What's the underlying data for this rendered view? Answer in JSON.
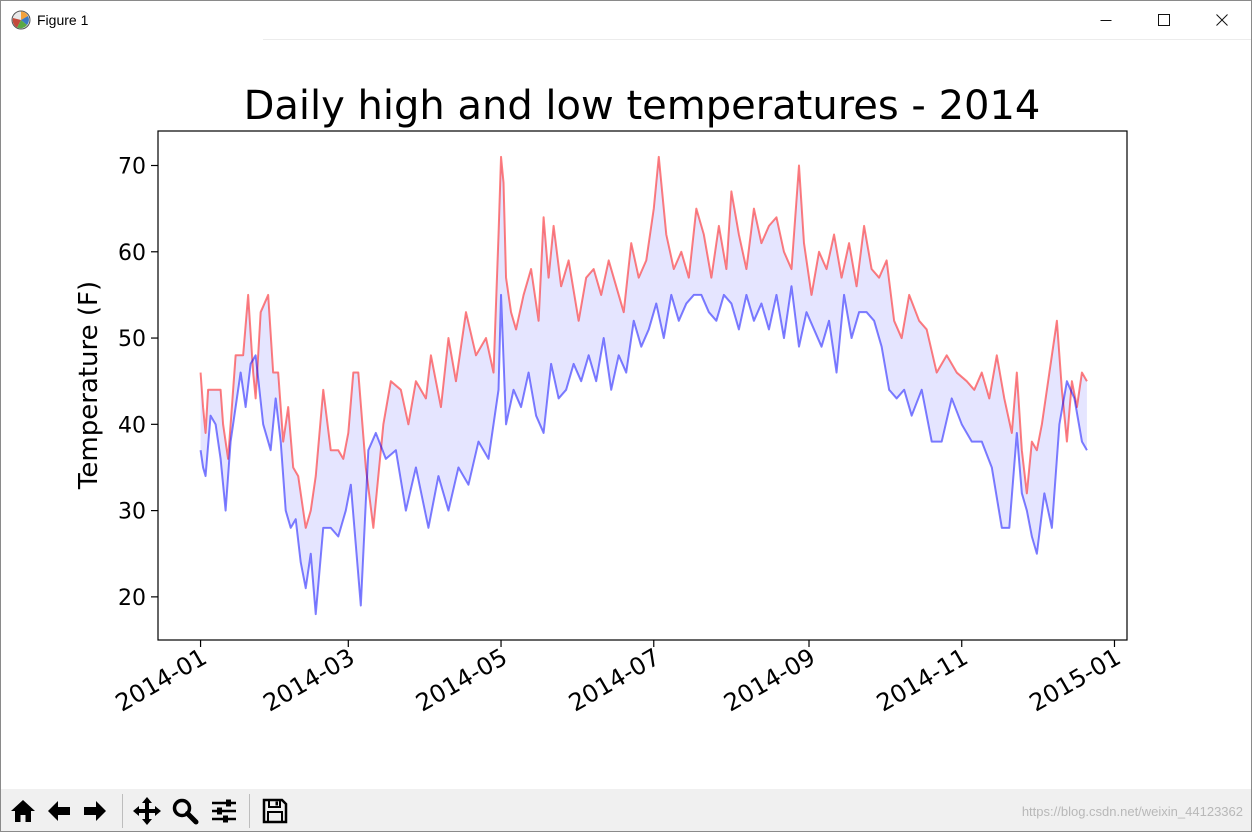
{
  "window": {
    "title": "Figure 1",
    "icons": {
      "app": "matplotlib-icon",
      "minimize": "minimize-icon",
      "maximize": "maximize-icon",
      "close": "close-icon"
    }
  },
  "toolbar": {
    "buttons": [
      {
        "name": "home",
        "icon": "home-icon"
      },
      {
        "name": "back",
        "icon": "arrow-left-icon"
      },
      {
        "name": "forward",
        "icon": "arrow-right-icon"
      },
      {
        "name": "pan",
        "icon": "move-icon"
      },
      {
        "name": "zoom",
        "icon": "magnifier-icon"
      },
      {
        "name": "configure",
        "icon": "sliders-icon"
      },
      {
        "name": "save",
        "icon": "floppy-icon"
      }
    ],
    "watermark": "https://blog.csdn.net/weixin_44123362"
  },
  "chart_data": {
    "type": "line",
    "title": "Daily high and low temperatures - 2014",
    "xlabel": "",
    "ylabel": "Temperature (F)",
    "xlim": [
      "2013-12-15",
      "2015-01-06"
    ],
    "ylim": [
      15,
      74
    ],
    "xticks": [
      "2014-01",
      "2014-03",
      "2014-05",
      "2014-07",
      "2014-09",
      "2014-11",
      "2015-01"
    ],
    "yticks": [
      20,
      30,
      40,
      50,
      60,
      70
    ],
    "fill_between": {
      "color": "#0000ff",
      "alpha": 0.1
    },
    "grid": false,
    "legend": "none",
    "series": [
      {
        "color": "#ff0000",
        "alpha": 0.5,
        "x": [
          "2014-01-01",
          "2014-01-02",
          "2014-01-03",
          "2014-01-04",
          "2014-01-05",
          "2014-01-07",
          "2014-01-09",
          "2014-01-10",
          "2014-01-12",
          "2014-01-15",
          "2014-01-18",
          "2014-01-20",
          "2014-01-22",
          "2014-01-23",
          "2014-01-25",
          "2014-01-28",
          "2014-01-30",
          "2014-02-01",
          "2014-02-03",
          "2014-02-05",
          "2014-02-07",
          "2014-02-09",
          "2014-02-10",
          "2014-02-12",
          "2014-02-14",
          "2014-02-16",
          "2014-02-19",
          "2014-02-22",
          "2014-02-25",
          "2014-02-27",
          "2014-03-01",
          "2014-03-03",
          "2014-03-05",
          "2014-03-08",
          "2014-03-11",
          "2014-03-15",
          "2014-03-18",
          "2014-03-22",
          "2014-03-25",
          "2014-03-28",
          "2014-04-01",
          "2014-04-03",
          "2014-04-07",
          "2014-04-10",
          "2014-04-13",
          "2014-04-17",
          "2014-04-21",
          "2014-04-25",
          "2014-04-28",
          "2014-04-30",
          "2014-05-01",
          "2014-05-02",
          "2014-05-03",
          "2014-05-05",
          "2014-05-07",
          "2014-05-10",
          "2014-05-13",
          "2014-05-16",
          "2014-05-18",
          "2014-05-20",
          "2014-05-22",
          "2014-05-25",
          "2014-05-28",
          "2014-06-01",
          "2014-06-04",
          "2014-06-07",
          "2014-06-10",
          "2014-06-13",
          "2014-06-16",
          "2014-06-19",
          "2014-06-22",
          "2014-06-25",
          "2014-06-28",
          "2014-07-01",
          "2014-07-03",
          "2014-07-06",
          "2014-07-09",
          "2014-07-12",
          "2014-07-15",
          "2014-07-18",
          "2014-07-21",
          "2014-07-24",
          "2014-07-27",
          "2014-07-30",
          "2014-08-01",
          "2014-08-04",
          "2014-08-07",
          "2014-08-10",
          "2014-08-13",
          "2014-08-16",
          "2014-08-19",
          "2014-08-22",
          "2014-08-25",
          "2014-08-28",
          "2014-08-30",
          "2014-09-02",
          "2014-09-05",
          "2014-09-08",
          "2014-09-11",
          "2014-09-14",
          "2014-09-17",
          "2014-09-20",
          "2014-09-23",
          "2014-09-26",
          "2014-09-29",
          "2014-10-02",
          "2014-10-05",
          "2014-10-08",
          "2014-10-11",
          "2014-10-15",
          "2014-10-18",
          "2014-10-22",
          "2014-10-26",
          "2014-10-30",
          "2014-11-03",
          "2014-11-06",
          "2014-11-09",
          "2014-11-12",
          "2014-11-15",
          "2014-11-18",
          "2014-11-21",
          "2014-11-23",
          "2014-11-25",
          "2014-11-27",
          "2014-11-29",
          "2014-12-01",
          "2014-12-03",
          "2014-12-06",
          "2014-12-09",
          "2014-12-11",
          "2014-12-13",
          "2014-12-15",
          "2014-12-17",
          "2014-12-19",
          "2014-12-21"
        ],
        "values": [
          46,
          42,
          39,
          44,
          44,
          44,
          44,
          40,
          36,
          48,
          48,
          55,
          46,
          43,
          53,
          55,
          46,
          46,
          38,
          42,
          35,
          34,
          32,
          28,
          30,
          34,
          44,
          37,
          37,
          36,
          39,
          46,
          46,
          35,
          28,
          40,
          45,
          44,
          40,
          45,
          43,
          48,
          42,
          50,
          45,
          53,
          48,
          50,
          46,
          62,
          71,
          68,
          57,
          53,
          51,
          55,
          58,
          52,
          64,
          57,
          63,
          56,
          59,
          52,
          57,
          58,
          55,
          59,
          56,
          53,
          61,
          57,
          59,
          65,
          71,
          62,
          58,
          60,
          57,
          65,
          62,
          57,
          63,
          58,
          67,
          62,
          58,
          65,
          61,
          63,
          64,
          60,
          58,
          70,
          61,
          55,
          60,
          58,
          62,
          57,
          61,
          56,
          63,
          58,
          57,
          59,
          52,
          50,
          55,
          52,
          51,
          46,
          48,
          46,
          45,
          44,
          46,
          43,
          48,
          43,
          39,
          46,
          37,
          32,
          38,
          37,
          40,
          46,
          52,
          44,
          38,
          45,
          42,
          46,
          45
        ]
      },
      {
        "color": "#0000ff",
        "alpha": 0.5,
        "x": [
          "2014-01-01",
          "2014-01-02",
          "2014-01-03",
          "2014-01-05",
          "2014-01-07",
          "2014-01-09",
          "2014-01-11",
          "2014-01-13",
          "2014-01-15",
          "2014-01-17",
          "2014-01-19",
          "2014-01-21",
          "2014-01-23",
          "2014-01-26",
          "2014-01-29",
          "2014-01-31",
          "2014-02-02",
          "2014-02-04",
          "2014-02-06",
          "2014-02-08",
          "2014-02-10",
          "2014-02-12",
          "2014-02-14",
          "2014-02-16",
          "2014-02-19",
          "2014-02-22",
          "2014-02-25",
          "2014-02-28",
          "2014-03-02",
          "2014-03-04",
          "2014-03-06",
          "2014-03-09",
          "2014-03-12",
          "2014-03-16",
          "2014-03-20",
          "2014-03-24",
          "2014-03-28",
          "2014-04-02",
          "2014-04-06",
          "2014-04-10",
          "2014-04-14",
          "2014-04-18",
          "2014-04-22",
          "2014-04-26",
          "2014-04-30",
          "2014-05-01",
          "2014-05-03",
          "2014-05-06",
          "2014-05-09",
          "2014-05-12",
          "2014-05-15",
          "2014-05-18",
          "2014-05-21",
          "2014-05-24",
          "2014-05-27",
          "2014-05-30",
          "2014-06-02",
          "2014-06-05",
          "2014-06-08",
          "2014-06-11",
          "2014-06-14",
          "2014-06-17",
          "2014-06-20",
          "2014-06-23",
          "2014-06-26",
          "2014-06-29",
          "2014-07-02",
          "2014-07-05",
          "2014-07-08",
          "2014-07-11",
          "2014-07-14",
          "2014-07-17",
          "2014-07-20",
          "2014-07-23",
          "2014-07-26",
          "2014-07-29",
          "2014-08-01",
          "2014-08-04",
          "2014-08-07",
          "2014-08-10",
          "2014-08-13",
          "2014-08-16",
          "2014-08-19",
          "2014-08-22",
          "2014-08-25",
          "2014-08-28",
          "2014-08-31",
          "2014-09-03",
          "2014-09-06",
          "2014-09-09",
          "2014-09-12",
          "2014-09-15",
          "2014-09-18",
          "2014-09-21",
          "2014-09-24",
          "2014-09-27",
          "2014-09-30",
          "2014-10-03",
          "2014-10-06",
          "2014-10-09",
          "2014-10-12",
          "2014-10-16",
          "2014-10-20",
          "2014-10-24",
          "2014-10-28",
          "2014-11-01",
          "2014-11-05",
          "2014-11-09",
          "2014-11-13",
          "2014-11-17",
          "2014-11-20",
          "2014-11-23",
          "2014-11-25",
          "2014-11-27",
          "2014-11-29",
          "2014-12-01",
          "2014-12-04",
          "2014-12-07",
          "2014-12-10",
          "2014-12-13",
          "2014-12-16",
          "2014-12-19",
          "2014-12-21"
        ],
        "values": [
          37,
          35,
          34,
          41,
          40,
          36,
          30,
          38,
          42,
          46,
          42,
          47,
          48,
          40,
          37,
          43,
          38,
          30,
          28,
          29,
          24,
          21,
          25,
          18,
          28,
          28,
          27,
          30,
          33,
          26,
          19,
          37,
          39,
          36,
          37,
          30,
          35,
          28,
          34,
          30,
          35,
          33,
          38,
          36,
          44,
          55,
          40,
          44,
          42,
          46,
          41,
          39,
          47,
          43,
          44,
          47,
          45,
          48,
          45,
          50,
          44,
          48,
          46,
          52,
          49,
          51,
          54,
          50,
          55,
          52,
          54,
          55,
          55,
          53,
          52,
          55,
          54,
          51,
          55,
          52,
          54,
          51,
          55,
          50,
          56,
          49,
          53,
          51,
          49,
          52,
          46,
          55,
          50,
          53,
          53,
          52,
          49,
          44,
          43,
          44,
          41,
          44,
          38,
          38,
          43,
          40,
          38,
          38,
          35,
          28,
          28,
          39,
          32,
          30,
          27,
          25,
          32,
          28,
          40,
          45,
          43,
          38,
          37
        ]
      }
    ]
  }
}
